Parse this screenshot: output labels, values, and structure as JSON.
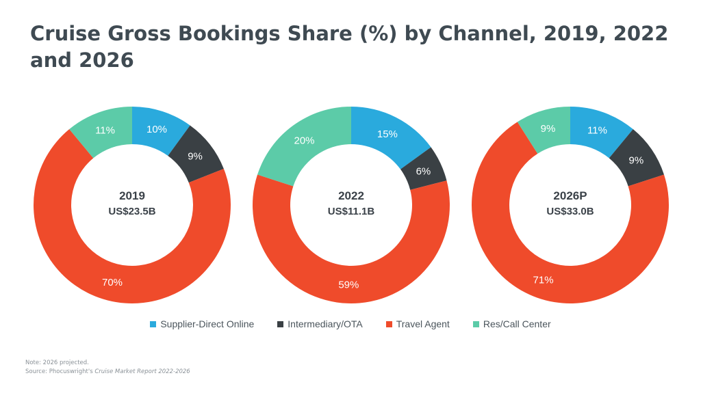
{
  "title": "Cruise Gross Bookings Share (%) by Channel, 2019, 2022 and 2026",
  "colors": {
    "Supplier-Direct Online": "#2aaadd",
    "Intermediary/OTA": "#3a4044",
    "Travel Agent": "#ef4b2b",
    "Res/Call Center": "#5ccba8"
  },
  "chart_data": [
    {
      "type": "pie",
      "center_label": "2019",
      "center_value": "US$23.5B",
      "categories": [
        "Supplier-Direct Online",
        "Intermediary/OTA",
        "Travel Agent",
        "Res/Call Center"
      ],
      "values": [
        10,
        9,
        70,
        11
      ],
      "labels": [
        "10%",
        "9%",
        "70%",
        "11%"
      ]
    },
    {
      "type": "pie",
      "center_label": "2022",
      "center_value": "US$11.1B",
      "categories": [
        "Supplier-Direct Online",
        "Intermediary/OTA",
        "Travel Agent",
        "Res/Call Center"
      ],
      "values": [
        15,
        6,
        59,
        20
      ],
      "labels": [
        "15%",
        "6%",
        "59%",
        "20%"
      ]
    },
    {
      "type": "pie",
      "center_label": "2026P",
      "center_value": "US$33.0B",
      "categories": [
        "Supplier-Direct Online",
        "Intermediary/OTA",
        "Travel Agent",
        "Res/Call Center"
      ],
      "values": [
        11,
        9,
        71,
        9
      ],
      "labels": [
        "11%",
        "9%",
        "71%",
        "9%"
      ]
    }
  ],
  "legend": [
    "Supplier-Direct Online",
    "Intermediary/OTA",
    "Travel Agent",
    "Res/Call Center"
  ],
  "notes": {
    "line1": "Note: 2026 projected.",
    "source_prefix": "Source: Phocuswright's",
    "source_report": "Cruise Market Report 2022-2026"
  }
}
